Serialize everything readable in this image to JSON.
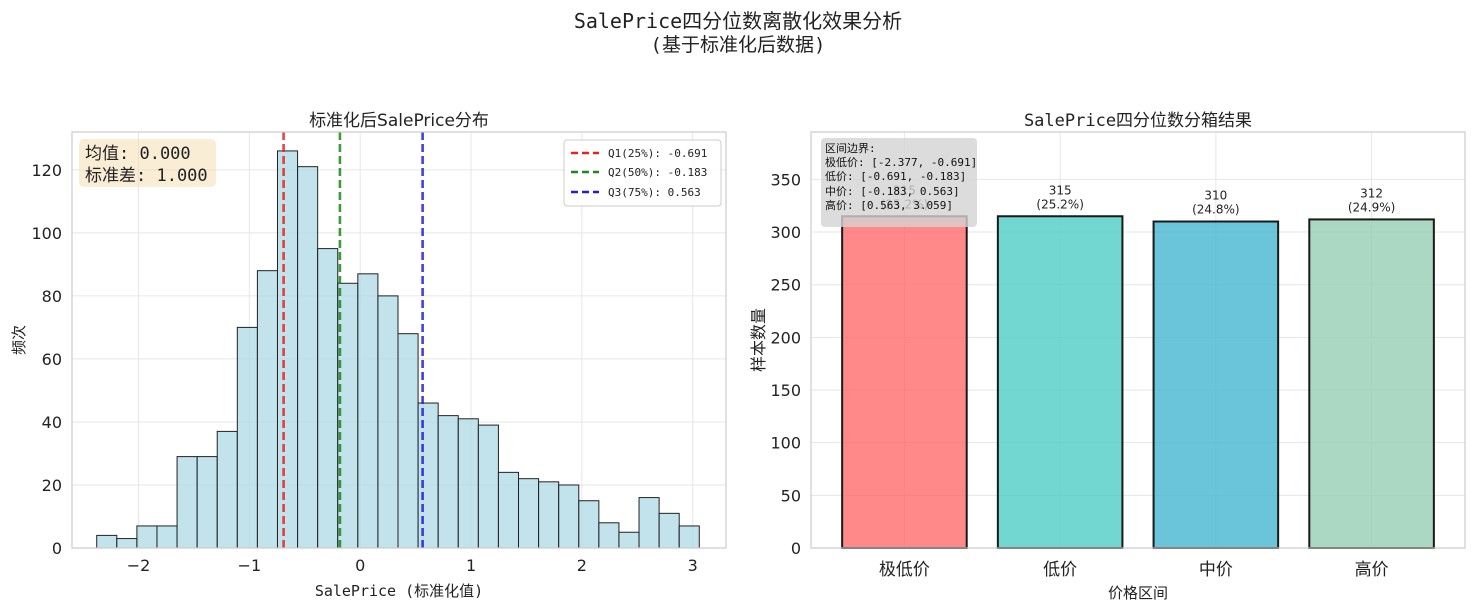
{
  "figure": {
    "title_line1": "SalePrice四分位数离散化效果分析",
    "title_line2": "(基于标准化后数据)"
  },
  "chart_data": [
    {
      "type": "bar",
      "subtype": "histogram",
      "title": "标准化后SalePrice分布",
      "xlabel": "SalePrice (标准化值)",
      "ylabel": "频次",
      "xlim": [
        -2.6,
        3.3
      ],
      "ylim": [
        0,
        132
      ],
      "xticks": [
        -2,
        -1,
        0,
        1,
        2,
        3
      ],
      "yticks": [
        0,
        20,
        40,
        60,
        80,
        100,
        120
      ],
      "grid": true,
      "bin_start": -2.377,
      "bin_width": 0.1812,
      "counts": [
        4,
        3,
        7,
        7,
        29,
        29,
        37,
        70,
        88,
        126,
        121,
        95,
        84,
        87,
        80,
        68,
        46,
        42,
        41,
        39,
        24,
        22,
        21,
        20,
        15,
        8,
        5,
        16,
        11,
        7
      ],
      "bar_color": "#add8e6",
      "stats_box": [
        "均值: 0.000",
        "标准差: 1.000"
      ],
      "vlines": [
        {
          "label": "Q1(25%): -0.691",
          "x": -0.691,
          "color": "#e8231e"
        },
        {
          "label": "Q2(50%): -0.183",
          "x": -0.183,
          "color": "#1a8a1a"
        },
        {
          "label": "Q3(75%): 0.563",
          "x": 0.563,
          "color": "#1d1ee0"
        }
      ],
      "legend_position": "top-right"
    },
    {
      "type": "bar",
      "title": "SalePrice四分位数分箱结果",
      "xlabel": "价格区间",
      "ylabel": "样本数量",
      "categories": [
        "极低价",
        "低价",
        "中价",
        "高价"
      ],
      "values": [
        315,
        315,
        310,
        312
      ],
      "value_labels": [
        "315",
        "315",
        "310",
        "312"
      ],
      "percent_labels": [
        "(25.2%)",
        "(25.2%)",
        "(24.8%)",
        "(24.9%)"
      ],
      "colors": [
        "#ff6b6b",
        "#4ecdc4",
        "#45b7d1",
        "#96ceb4"
      ],
      "ylim": [
        0,
        395
      ],
      "yticks": [
        0,
        50,
        100,
        150,
        200,
        250,
        300,
        350
      ],
      "grid": true,
      "boundary_box": [
        "区间边界:",
        "极低价: [-2.377, -0.691]",
        "低价: [-0.691, -0.183]",
        "中价: [-0.183, 0.563]",
        "高价: [0.563, 3.059]"
      ]
    }
  ]
}
